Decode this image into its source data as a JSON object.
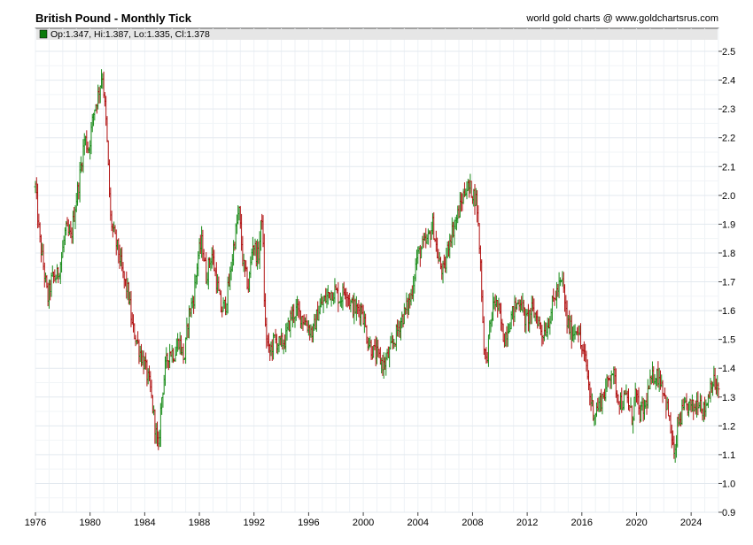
{
  "chart_data": {
    "type": "ohlc",
    "title": "British Pound - Monthly Tick",
    "credit": "world gold charts @ www.goldchartsrus.com",
    "legend": {
      "label": "Op:1.347, Hi:1.387, Lo:1.335, Cl:1.378",
      "color": "#0a7a0a"
    },
    "up_color": "#1a8c1a",
    "down_color": "#b01010",
    "x_range": [
      1976.0,
      2026.0
    ],
    "x_ticks": [
      1976,
      1980,
      1984,
      1988,
      1992,
      1996,
      2000,
      2004,
      2008,
      2012,
      2016,
      2020,
      2024
    ],
    "y_range": [
      0.9,
      2.55
    ],
    "y_ticks": [
      "0.9",
      "1.0",
      "1.1",
      "1.2",
      "1.3",
      "1.4",
      "1.5",
      "1.6",
      "1.7",
      "1.8",
      "1.9",
      "2.0",
      "2.1",
      "2.2",
      "2.3",
      "2.4",
      "2.5"
    ],
    "grid": true,
    "series": [
      {
        "values": [
          [
            1976.0,
            2.03
          ],
          [
            1976.3,
            1.85
          ],
          [
            1976.6,
            1.75
          ],
          [
            1976.9,
            1.64
          ],
          [
            1977.2,
            1.71
          ],
          [
            1977.6,
            1.72
          ],
          [
            1977.9,
            1.78
          ],
          [
            1978.2,
            1.88
          ],
          [
            1978.6,
            1.85
          ],
          [
            1978.9,
            1.96
          ],
          [
            1979.2,
            2.05
          ],
          [
            1979.6,
            2.2
          ],
          [
            1979.9,
            2.16
          ],
          [
            1980.3,
            2.3
          ],
          [
            1980.6,
            2.35
          ],
          [
            1980.9,
            2.43
          ],
          [
            1981.2,
            2.23
          ],
          [
            1981.5,
            1.92
          ],
          [
            1981.8,
            1.85
          ],
          [
            1982.1,
            1.8
          ],
          [
            1982.4,
            1.72
          ],
          [
            1982.8,
            1.66
          ],
          [
            1983.1,
            1.54
          ],
          [
            1983.4,
            1.5
          ],
          [
            1983.7,
            1.45
          ],
          [
            1984.0,
            1.41
          ],
          [
            1984.4,
            1.33
          ],
          [
            1984.7,
            1.22
          ],
          [
            1985.0,
            1.11
          ],
          [
            1985.2,
            1.28
          ],
          [
            1985.5,
            1.4
          ],
          [
            1985.8,
            1.46
          ],
          [
            1986.2,
            1.45
          ],
          [
            1986.5,
            1.5
          ],
          [
            1986.9,
            1.43
          ],
          [
            1987.2,
            1.58
          ],
          [
            1987.6,
            1.65
          ],
          [
            1987.9,
            1.79
          ],
          [
            1988.2,
            1.84
          ],
          [
            1988.5,
            1.72
          ],
          [
            1988.9,
            1.8
          ],
          [
            1989.2,
            1.72
          ],
          [
            1989.6,
            1.6
          ],
          [
            1989.9,
            1.62
          ],
          [
            1990.2,
            1.7
          ],
          [
            1990.5,
            1.82
          ],
          [
            1990.9,
            1.95
          ],
          [
            1991.2,
            1.76
          ],
          [
            1991.6,
            1.68
          ],
          [
            1991.9,
            1.84
          ],
          [
            1992.3,
            1.78
          ],
          [
            1992.6,
            1.94
          ],
          [
            1992.8,
            1.55
          ],
          [
            1993.1,
            1.45
          ],
          [
            1993.5,
            1.5
          ],
          [
            1993.9,
            1.48
          ],
          [
            1994.3,
            1.5
          ],
          [
            1994.7,
            1.58
          ],
          [
            1995.1,
            1.6
          ],
          [
            1995.5,
            1.58
          ],
          [
            1995.9,
            1.55
          ],
          [
            1996.3,
            1.52
          ],
          [
            1996.7,
            1.6
          ],
          [
            1997.1,
            1.63
          ],
          [
            1997.5,
            1.66
          ],
          [
            1997.9,
            1.67
          ],
          [
            1998.3,
            1.64
          ],
          [
            1998.7,
            1.68
          ],
          [
            1999.1,
            1.62
          ],
          [
            1999.5,
            1.6
          ],
          [
            1999.9,
            1.61
          ],
          [
            2000.3,
            1.5
          ],
          [
            2000.7,
            1.46
          ],
          [
            2001.1,
            1.44
          ],
          [
            2001.5,
            1.41
          ],
          [
            2001.9,
            1.45
          ],
          [
            2002.3,
            1.5
          ],
          [
            2002.7,
            1.56
          ],
          [
            2003.1,
            1.6
          ],
          [
            2003.5,
            1.65
          ],
          [
            2003.9,
            1.78
          ],
          [
            2004.3,
            1.82
          ],
          [
            2004.7,
            1.84
          ],
          [
            2005.1,
            1.9
          ],
          [
            2005.5,
            1.77
          ],
          [
            2005.9,
            1.73
          ],
          [
            2006.3,
            1.85
          ],
          [
            2006.7,
            1.9
          ],
          [
            2007.1,
            1.96
          ],
          [
            2007.5,
            2.03
          ],
          [
            2007.9,
            2.02
          ],
          [
            2008.3,
            1.98
          ],
          [
            2008.6,
            1.75
          ],
          [
            2008.8,
            1.5
          ],
          [
            2009.0,
            1.42
          ],
          [
            2009.3,
            1.55
          ],
          [
            2009.6,
            1.64
          ],
          [
            2009.9,
            1.6
          ],
          [
            2010.3,
            1.5
          ],
          [
            2010.7,
            1.56
          ],
          [
            2011.1,
            1.61
          ],
          [
            2011.5,
            1.64
          ],
          [
            2011.9,
            1.56
          ],
          [
            2012.3,
            1.6
          ],
          [
            2012.7,
            1.58
          ],
          [
            2013.1,
            1.52
          ],
          [
            2013.5,
            1.55
          ],
          [
            2013.9,
            1.63
          ],
          [
            2014.3,
            1.68
          ],
          [
            2014.6,
            1.7
          ],
          [
            2014.9,
            1.56
          ],
          [
            2015.3,
            1.52
          ],
          [
            2015.7,
            1.55
          ],
          [
            2015.9,
            1.48
          ],
          [
            2016.3,
            1.42
          ],
          [
            2016.6,
            1.3
          ],
          [
            2016.9,
            1.24
          ],
          [
            2017.3,
            1.28
          ],
          [
            2017.7,
            1.32
          ],
          [
            2017.9,
            1.35
          ],
          [
            2018.2,
            1.4
          ],
          [
            2018.6,
            1.31
          ],
          [
            2018.9,
            1.28
          ],
          [
            2019.3,
            1.3
          ],
          [
            2019.7,
            1.22
          ],
          [
            2019.9,
            1.32
          ],
          [
            2020.2,
            1.24
          ],
          [
            2020.6,
            1.26
          ],
          [
            2020.9,
            1.33
          ],
          [
            2021.3,
            1.38
          ],
          [
            2021.7,
            1.37
          ],
          [
            2021.9,
            1.34
          ],
          [
            2022.3,
            1.25
          ],
          [
            2022.7,
            1.12
          ],
          [
            2022.8,
            1.07
          ],
          [
            2023.0,
            1.2
          ],
          [
            2023.4,
            1.25
          ],
          [
            2023.8,
            1.27
          ],
          [
            2024.2,
            1.26
          ],
          [
            2024.6,
            1.3
          ],
          [
            2024.9,
            1.25
          ],
          [
            2025.2,
            1.29
          ],
          [
            2025.5,
            1.36
          ],
          [
            2025.8,
            1.34
          ],
          [
            2026.0,
            1.32
          ]
        ]
      }
    ]
  }
}
